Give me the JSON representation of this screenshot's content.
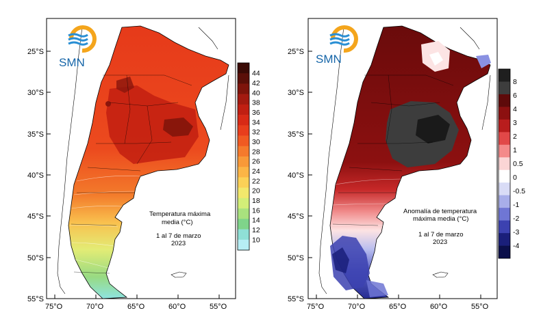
{
  "logo": {
    "text": "SMN",
    "colors": {
      "sun": "#f4a51c",
      "wave": "#2a8fd4"
    }
  },
  "axes": {
    "lat_ticks": [
      "25°S",
      "30°S",
      "35°S",
      "40°S",
      "45°S",
      "50°S",
      "55°S"
    ],
    "lon_ticks": [
      "75°O",
      "70°O",
      "65°O",
      "60°O",
      "55°O"
    ]
  },
  "left_map": {
    "caption": {
      "line1": "Temperatura máxima",
      "line2": "media (°C)",
      "line3": "1 al 7 de marzo",
      "line4": "2023"
    },
    "colorbar": {
      "labels": [
        "44",
        "42",
        "40",
        "38",
        "36",
        "34",
        "32",
        "30",
        "28",
        "26",
        "24",
        "22",
        "20",
        "18",
        "16",
        "14",
        "12",
        "10"
      ],
      "colors": [
        "#3a0a05",
        "#5a0f08",
        "#7e140b",
        "#a31a10",
        "#c01f12",
        "#d82a16",
        "#e83e1c",
        "#f05a22",
        "#f57a2c",
        "#f89938",
        "#fbb546",
        "#fbd157",
        "#f2e86c",
        "#d3ee78",
        "#a9e27e",
        "#7fd48a",
        "#8fe0d6",
        "#b7eef5"
      ]
    }
  },
  "right_map": {
    "caption": {
      "line1": "Anomalía de temperatura",
      "line2": "máxima media (°C)",
      "line3": "1 al 7 de marzo",
      "line4": "2023"
    },
    "colorbar": {
      "labels": [
        "8",
        "6",
        "4",
        "3",
        "2",
        "1",
        "0.5",
        "0",
        "-0.5",
        "-1",
        "-2",
        "-3",
        "-4"
      ],
      "colors": [
        "#1f1f1f",
        "#3d3d3d",
        "#5e0a0a",
        "#8c1010",
        "#b81d1d",
        "#e14848",
        "#f48a8a",
        "#fbd5d5",
        "#ffffff",
        "#d9dcf6",
        "#a8aee9",
        "#6f76d4",
        "#3c42b0",
        "#1a1f7a",
        "#0b0f4a"
      ]
    }
  }
}
